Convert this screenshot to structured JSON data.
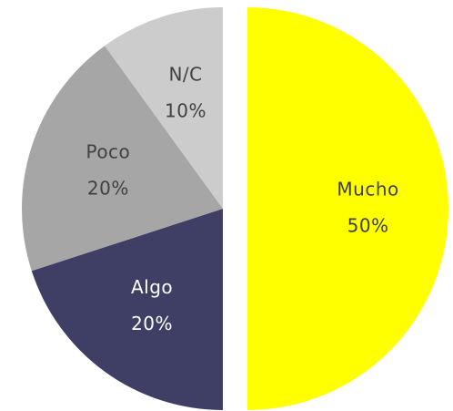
{
  "chart_data": {
    "type": "pie",
    "categories": [
      "Mucho",
      "Algo",
      "Poco",
      "N/C"
    ],
    "values": [
      50,
      20,
      20,
      10
    ],
    "value_labels": [
      "50%",
      "20%",
      "20%",
      "10%"
    ],
    "colors": [
      "#ffff00",
      "#3f3f66",
      "#a6a6a6",
      "#cccccc"
    ],
    "label_colors": [
      "#404040",
      "#ffffff",
      "#404040",
      "#404040"
    ],
    "exploded": [
      true,
      false,
      false,
      false
    ]
  }
}
